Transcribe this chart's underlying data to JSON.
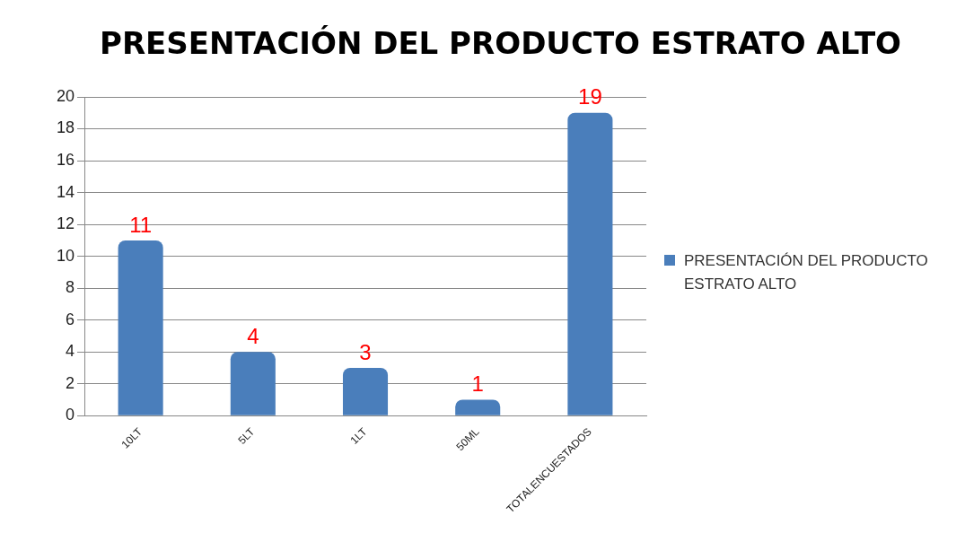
{
  "chart_data": {
    "type": "bar",
    "title": "PRESENTACIÓN DEL PRODUCTO ESTRATO ALTO",
    "categories": [
      "10LT",
      "5LT",
      "1LT",
      "50ML",
      "TOTALENCUESTADOS"
    ],
    "series": [
      {
        "name": "PRESENTACIÓN DEL PRODUCTO ESTRATO ALTO",
        "color": "#4a7ebb",
        "values": [
          11,
          4,
          3,
          1,
          19
        ]
      }
    ],
    "ylim": [
      0,
      20
    ],
    "yticks": [
      0,
      2,
      4,
      6,
      8,
      10,
      12,
      14,
      16,
      18,
      20
    ],
    "grid": "y",
    "legend": "right",
    "data_labels": true
  }
}
